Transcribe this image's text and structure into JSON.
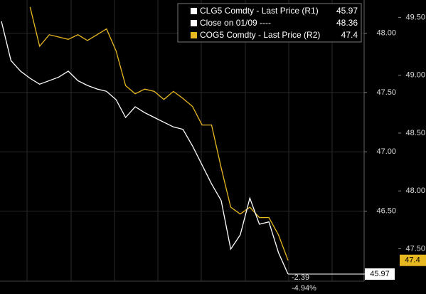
{
  "chart_data": {
    "type": "line",
    "series": [
      {
        "name": "CLG5 Comdty - Last Price (R1)",
        "color": "#ffffff",
        "axis": "y",
        "values": [
          48.1,
          47.77,
          47.68,
          47.62,
          47.57,
          47.6,
          47.63,
          47.68,
          47.6,
          47.56,
          47.53,
          47.51,
          47.44,
          47.29,
          47.38,
          47.33,
          47.29,
          47.25,
          47.21,
          47.19,
          47.05,
          46.89,
          46.73,
          46.59,
          46.18,
          46.3,
          46.61,
          46.39,
          46.41,
          46.15,
          45.97
        ]
      },
      {
        "name": "COG5 Comdty - Last Price (R2)",
        "color": "#e8b820",
        "axis": "y2",
        "values": [
          null,
          null,
          null,
          49.59,
          49.25,
          49.35,
          49.33,
          49.31,
          49.35,
          49.3,
          49.35,
          49.4,
          49.21,
          48.91,
          48.84,
          48.88,
          48.86,
          48.79,
          48.86,
          48.8,
          48.73,
          48.57,
          48.57,
          48.2,
          47.86,
          47.8,
          47.86,
          47.77,
          47.77,
          47.62,
          47.4
        ]
      }
    ],
    "close_line": {
      "name": "Close on 01/09 ----",
      "value": 48.36,
      "color": "#ffffff"
    },
    "annotations": [
      "-2.39",
      "-4.94%"
    ],
    "ylim": [
      45.91,
      48.28
    ],
    "yticks": [
      {
        "value": 46.5,
        "label": "46.50"
      },
      {
        "value": 47,
        "label": "47.00"
      },
      {
        "value": 47.5,
        "label": "47.50"
      },
      {
        "value": 48,
        "label": "48.00"
      }
    ],
    "y2lim": [
      47.22,
      49.65
    ],
    "y2ticks": [
      {
        "value": 47.5,
        "label": "47.50"
      },
      {
        "value": 48,
        "label": "48.00"
      },
      {
        "value": 48.5,
        "label": "48.50"
      },
      {
        "value": 49,
        "label": "49.00"
      },
      {
        "value": 49.5,
        "label": "49.50"
      }
    ],
    "grid": true
  }
}
